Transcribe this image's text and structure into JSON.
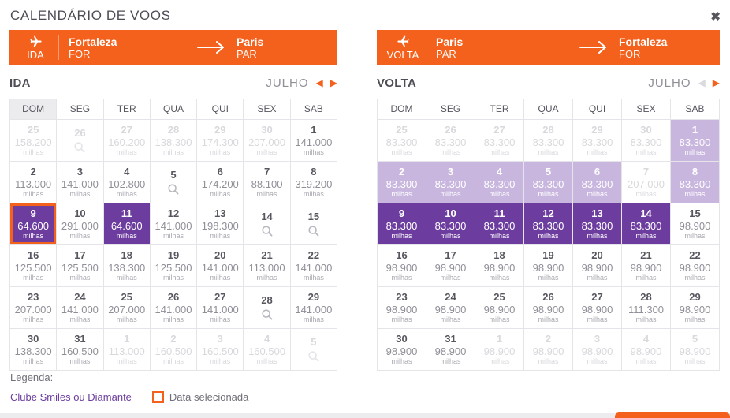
{
  "title": "CALENDÁRIO DE VOOS",
  "icons": {
    "prev": "◀",
    "next": "▶",
    "close": "✖"
  },
  "unit": "milhas",
  "legend": {
    "label": "Legenda:",
    "club_label": "Clube Smiles ou Diamante",
    "selected_label": "Data selecionada"
  },
  "colors": {
    "accent_orange": "#f4611c",
    "club_purple": "#6c3d9e",
    "club_purple_light": "#c8b6df"
  },
  "calendars": [
    {
      "direction_label": "IDA",
      "origin_city": "Fortaleza",
      "origin_code": "FOR",
      "dest_city": "Paris",
      "dest_code": "PAR",
      "month_label": "JULHO",
      "prev_enabled": true,
      "next_enabled": true,
      "shaded_weekday": "DOM",
      "weekdays": [
        "DOM",
        "SEG",
        "TER",
        "QUA",
        "QUI",
        "SEX",
        "SAB"
      ],
      "cells": [
        {
          "day": "25",
          "price": "158.200",
          "state": "disabled"
        },
        {
          "day": "26",
          "price": null,
          "state": "disabled"
        },
        {
          "day": "27",
          "price": "160.200",
          "state": "disabled"
        },
        {
          "day": "28",
          "price": "138.300",
          "state": "disabled"
        },
        {
          "day": "29",
          "price": "174.300",
          "state": "disabled"
        },
        {
          "day": "30",
          "price": "207.000",
          "state": "disabled"
        },
        {
          "day": "1",
          "price": "141.000",
          "state": "normal"
        },
        {
          "day": "2",
          "price": "113.000",
          "state": "normal"
        },
        {
          "day": "3",
          "price": "141.000",
          "state": "normal"
        },
        {
          "day": "4",
          "price": "102.800",
          "state": "normal"
        },
        {
          "day": "5",
          "price": null,
          "state": "normal"
        },
        {
          "day": "6",
          "price": "174.200",
          "state": "normal"
        },
        {
          "day": "7",
          "price": "88.100",
          "state": "normal"
        },
        {
          "day": "8",
          "price": "319.200",
          "state": "normal"
        },
        {
          "day": "9",
          "price": "64.600",
          "state": "selected"
        },
        {
          "day": "10",
          "price": "291.000",
          "state": "normal"
        },
        {
          "day": "11",
          "price": "64.600",
          "state": "club"
        },
        {
          "day": "12",
          "price": "141.000",
          "state": "normal"
        },
        {
          "day": "13",
          "price": "198.300",
          "state": "normal"
        },
        {
          "day": "14",
          "price": null,
          "state": "normal"
        },
        {
          "day": "15",
          "price": null,
          "state": "normal"
        },
        {
          "day": "16",
          "price": "125.500",
          "state": "normal"
        },
        {
          "day": "17",
          "price": "125.500",
          "state": "normal"
        },
        {
          "day": "18",
          "price": "138.300",
          "state": "normal"
        },
        {
          "day": "19",
          "price": "125.500",
          "state": "normal"
        },
        {
          "day": "20",
          "price": "141.000",
          "state": "normal"
        },
        {
          "day": "21",
          "price": "113.000",
          "state": "normal"
        },
        {
          "day": "22",
          "price": "141.000",
          "state": "normal"
        },
        {
          "day": "23",
          "price": "207.000",
          "state": "normal"
        },
        {
          "day": "24",
          "price": "141.000",
          "state": "normal"
        },
        {
          "day": "25",
          "price": "207.000",
          "state": "normal"
        },
        {
          "day": "26",
          "price": "141.000",
          "state": "normal"
        },
        {
          "day": "27",
          "price": "141.000",
          "state": "normal"
        },
        {
          "day": "28",
          "price": null,
          "state": "normal"
        },
        {
          "day": "29",
          "price": "141.000",
          "state": "normal"
        },
        {
          "day": "30",
          "price": "138.300",
          "state": "normal"
        },
        {
          "day": "31",
          "price": "160.500",
          "state": "normal"
        },
        {
          "day": "1",
          "price": "113.000",
          "state": "disabled"
        },
        {
          "day": "2",
          "price": "160.500",
          "state": "disabled"
        },
        {
          "day": "3",
          "price": "160.500",
          "state": "disabled"
        },
        {
          "day": "4",
          "price": "160.500",
          "state": "disabled"
        },
        {
          "day": "5",
          "price": null,
          "state": "disabled"
        }
      ]
    },
    {
      "direction_label": "VOLTA",
      "origin_city": "Paris",
      "origin_code": "PAR",
      "dest_city": "Fortaleza",
      "dest_code": "FOR",
      "month_label": "JULHO",
      "prev_enabled": false,
      "next_enabled": true,
      "shaded_weekday": null,
      "weekdays": [
        "DOM",
        "SEG",
        "TER",
        "QUA",
        "QUI",
        "SEX",
        "SAB"
      ],
      "cells": [
        {
          "day": "25",
          "price": "83.300",
          "state": "disabled"
        },
        {
          "day": "26",
          "price": "83.300",
          "state": "disabled"
        },
        {
          "day": "27",
          "price": "83.300",
          "state": "disabled"
        },
        {
          "day": "28",
          "price": "83.300",
          "state": "disabled"
        },
        {
          "day": "29",
          "price": "83.300",
          "state": "disabled"
        },
        {
          "day": "30",
          "price": "83.300",
          "state": "disabled"
        },
        {
          "day": "1",
          "price": "83.300",
          "state": "club-light"
        },
        {
          "day": "2",
          "price": "83.300",
          "state": "club-light"
        },
        {
          "day": "3",
          "price": "83.300",
          "state": "club-light"
        },
        {
          "day": "4",
          "price": "83.300",
          "state": "club-light"
        },
        {
          "day": "5",
          "price": "83.300",
          "state": "club-light"
        },
        {
          "day": "6",
          "price": "83.300",
          "state": "club-light"
        },
        {
          "day": "7",
          "price": "207.000",
          "state": "disabled"
        },
        {
          "day": "8",
          "price": "83.300",
          "state": "club-light"
        },
        {
          "day": "9",
          "price": "83.300",
          "state": "club"
        },
        {
          "day": "10",
          "price": "83.300",
          "state": "club"
        },
        {
          "day": "11",
          "price": "83.300",
          "state": "club"
        },
        {
          "day": "12",
          "price": "83.300",
          "state": "club"
        },
        {
          "day": "13",
          "price": "83.300",
          "state": "club"
        },
        {
          "day": "14",
          "price": "83.300",
          "state": "club"
        },
        {
          "day": "15",
          "price": "98.900",
          "state": "normal"
        },
        {
          "day": "16",
          "price": "98.900",
          "state": "normal"
        },
        {
          "day": "17",
          "price": "98.900",
          "state": "normal"
        },
        {
          "day": "18",
          "price": "98.900",
          "state": "normal"
        },
        {
          "day": "19",
          "price": "98.900",
          "state": "normal"
        },
        {
          "day": "20",
          "price": "98.900",
          "state": "normal"
        },
        {
          "day": "21",
          "price": "98.900",
          "state": "normal"
        },
        {
          "day": "22",
          "price": "98.900",
          "state": "normal"
        },
        {
          "day": "23",
          "price": "98.900",
          "state": "normal"
        },
        {
          "day": "24",
          "price": "98.900",
          "state": "normal"
        },
        {
          "day": "25",
          "price": "98.900",
          "state": "normal"
        },
        {
          "day": "26",
          "price": "98.900",
          "state": "normal"
        },
        {
          "day": "27",
          "price": "98.900",
          "state": "normal"
        },
        {
          "day": "28",
          "price": "111.300",
          "state": "normal"
        },
        {
          "day": "29",
          "price": "98.900",
          "state": "normal"
        },
        {
          "day": "30",
          "price": "98.900",
          "state": "normal"
        },
        {
          "day": "31",
          "price": "98.900",
          "state": "normal"
        },
        {
          "day": "1",
          "price": "98.900",
          "state": "disabled"
        },
        {
          "day": "2",
          "price": "98.900",
          "state": "disabled"
        },
        {
          "day": "3",
          "price": "98.900",
          "state": "disabled"
        },
        {
          "day": "4",
          "price": "98.900",
          "state": "disabled"
        },
        {
          "day": "5",
          "price": "98.900",
          "state": "disabled"
        }
      ]
    }
  ]
}
